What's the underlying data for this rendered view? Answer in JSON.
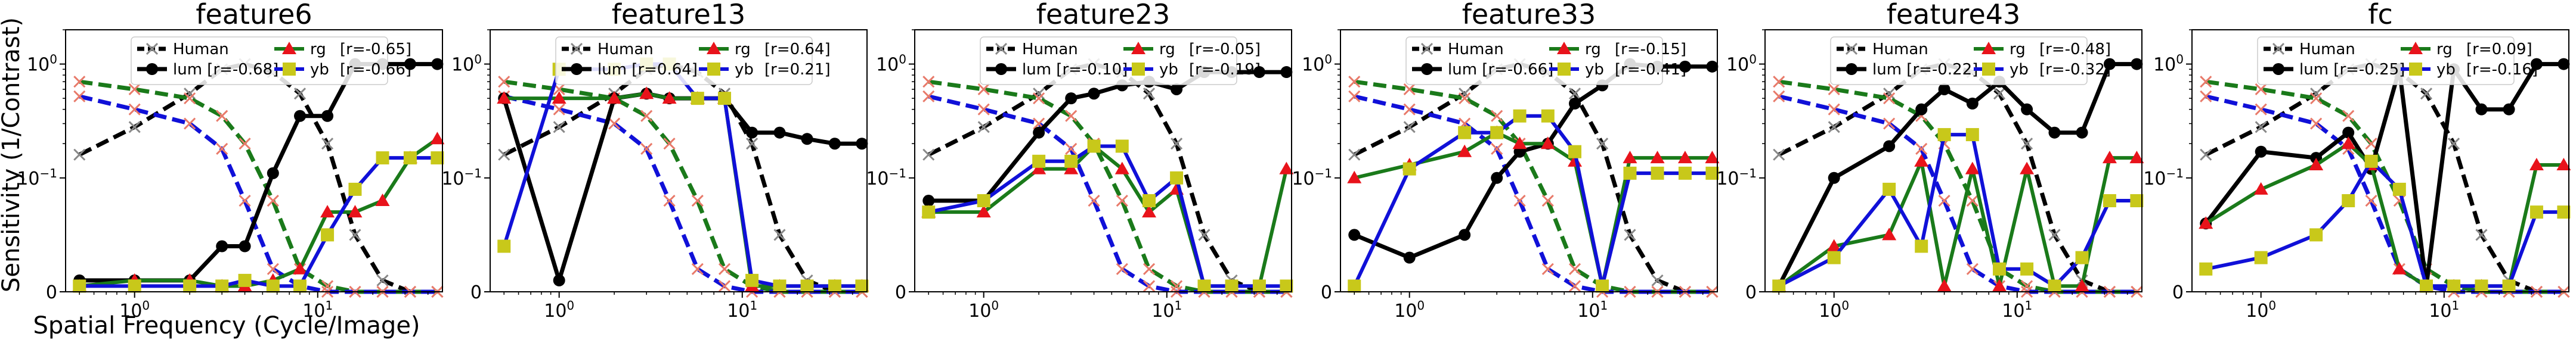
{
  "figure": {
    "ylabel": "Sensitivity (1/Contrast)",
    "xlabel": "Spatial Frequency (Cycle/Image)"
  },
  "colors": {
    "human": "#000000",
    "lum": "#000000",
    "rg": "#e8131b",
    "yb": "#c8c81a",
    "rg_line": "#1a7a1a",
    "yb_line": "#1010d8",
    "human_marker": "#888888",
    "rg_human": "#1a7a1a",
    "yb_human": "#1010d8",
    "cross": "#e87a6a"
  },
  "legend_labels": {
    "human": "Human",
    "lum": "lum",
    "rg": "rg",
    "yb": "yb"
  },
  "chart_data": [
    {
      "type": "line",
      "title": "feature6",
      "x": [
        0.5,
        1,
        2,
        3,
        4,
        5.7,
        8,
        11.3,
        16,
        22.6,
        32,
        45
      ],
      "yscale": "symlog",
      "ylim": [
        0,
        2
      ],
      "xticks": [
        "10^0",
        "10^1"
      ],
      "yticks": [
        "0",
        "10^-1",
        "10^0"
      ],
      "series": [
        {
          "name": "Human",
          "values": [
            0.16,
            0.28,
            0.55,
            0.9,
            1.0,
            0.85,
            0.55,
            0.2,
            0.05,
            0.01,
            0.0,
            0.0
          ]
        },
        {
          "name": "Human-rg",
          "values": [
            0.7,
            0.6,
            0.5,
            0.35,
            0.2,
            0.08,
            0.02,
            0.005,
            0.0,
            0.0,
            0.0,
            0.0
          ]
        },
        {
          "name": "Human-yb",
          "values": [
            0.52,
            0.4,
            0.3,
            0.18,
            0.08,
            0.02,
            0.005,
            0.0,
            0.0,
            0.0,
            0.0,
            0.0
          ]
        },
        {
          "name": "lum",
          "r_label": "[r=-0.68]",
          "values": [
            0.01,
            0.01,
            0.01,
            0.04,
            0.04,
            0.11,
            0.35,
            0.35,
            1.0,
            1.0,
            1.0,
            1.0
          ]
        },
        {
          "name": "rg",
          "r_label": "[r=-0.65]",
          "values": [
            0.005,
            0.01,
            0.01,
            0.005,
            0.005,
            0.01,
            0.02,
            0.07,
            0.07,
            0.08,
            0.15,
            0.22
          ]
        },
        {
          "name": "yb",
          "r_label": "[r=-0.66]",
          "values": [
            0.005,
            0.005,
            0.005,
            0.005,
            0.01,
            0.005,
            0.005,
            0.05,
            0.09,
            0.15,
            0.15,
            0.15
          ]
        }
      ]
    },
    {
      "type": "line",
      "title": "feature13",
      "x": [
        0.5,
        1,
        2,
        3,
        4,
        5.7,
        8,
        11.3,
        16,
        22.6,
        32,
        45
      ],
      "yscale": "symlog",
      "ylim": [
        0,
        2
      ],
      "xticks": [
        "10^0",
        "10^1"
      ],
      "yticks": [
        "0",
        "10^-1",
        "10^0"
      ],
      "series": [
        {
          "name": "Human",
          "values": [
            0.16,
            0.28,
            0.55,
            0.9,
            1.0,
            0.85,
            0.55,
            0.2,
            0.05,
            0.01,
            0.0,
            0.0
          ]
        },
        {
          "name": "Human-rg",
          "values": [
            0.7,
            0.6,
            0.5,
            0.35,
            0.2,
            0.08,
            0.02,
            0.005,
            0.0,
            0.0,
            0.0,
            0.0
          ]
        },
        {
          "name": "Human-yb",
          "values": [
            0.52,
            0.4,
            0.3,
            0.18,
            0.08,
            0.02,
            0.005,
            0.0,
            0.0,
            0.0,
            0.0,
            0.0
          ]
        },
        {
          "name": "lum",
          "r_label": "[r=0.64]",
          "values": [
            0.5,
            0.01,
            0.5,
            0.55,
            0.5,
            0.5,
            0.5,
            0.25,
            0.25,
            0.22,
            0.2,
            0.2
          ]
        },
        {
          "name": "rg",
          "r_label": "[r=0.64]",
          "values": [
            0.5,
            0.5,
            0.5,
            0.55,
            0.5,
            0.5,
            0.5,
            0.005,
            0.005,
            0.005,
            0.005,
            0.005
          ]
        },
        {
          "name": "yb",
          "r_label": "[r=0.21]",
          "values": [
            0.04,
            0.9,
            0.9,
            1.0,
            1.0,
            0.5,
            0.5,
            0.01,
            0.005,
            0.005,
            0.005,
            0.005
          ]
        }
      ]
    },
    {
      "type": "line",
      "title": "feature23",
      "x": [
        0.5,
        1,
        2,
        3,
        4,
        5.7,
        8,
        11.3,
        16,
        22.6,
        32,
        45
      ],
      "yscale": "symlog",
      "ylim": [
        0,
        2
      ],
      "xticks": [
        "10^0",
        "10^1"
      ],
      "yticks": [
        "0",
        "10^-1",
        "10^0"
      ],
      "series": [
        {
          "name": "Human",
          "values": [
            0.16,
            0.28,
            0.55,
            0.9,
            1.0,
            0.85,
            0.55,
            0.2,
            0.05,
            0.01,
            0.0,
            0.0
          ]
        },
        {
          "name": "Human-rg",
          "values": [
            0.7,
            0.6,
            0.5,
            0.35,
            0.2,
            0.08,
            0.02,
            0.005,
            0.0,
            0.0,
            0.0,
            0.0
          ]
        },
        {
          "name": "Human-yb",
          "values": [
            0.52,
            0.4,
            0.3,
            0.18,
            0.08,
            0.02,
            0.005,
            0.0,
            0.0,
            0.0,
            0.0,
            0.0
          ]
        },
        {
          "name": "lum",
          "r_label": "[r=-0.10]",
          "values": [
            0.08,
            0.08,
            0.25,
            0.5,
            0.55,
            0.65,
            0.7,
            0.6,
            0.85,
            0.85,
            0.85,
            0.85
          ]
        },
        {
          "name": "rg",
          "r_label": "[r=-0.05]",
          "values": [
            0.07,
            0.07,
            0.12,
            0.12,
            0.19,
            0.12,
            0.07,
            0.09,
            0.005,
            0.005,
            0.005,
            0.12
          ]
        },
        {
          "name": "yb",
          "r_label": "[r=-0.19]",
          "values": [
            0.07,
            0.08,
            0.14,
            0.14,
            0.19,
            0.19,
            0.08,
            0.1,
            0.005,
            0.005,
            0.005,
            0.005
          ]
        }
      ]
    },
    {
      "type": "line",
      "title": "feature33",
      "x": [
        0.5,
        1,
        2,
        3,
        4,
        5.7,
        8,
        11.3,
        16,
        22.6,
        32,
        45
      ],
      "yscale": "symlog",
      "ylim": [
        0,
        2
      ],
      "xticks": [
        "10^0",
        "10^1"
      ],
      "yticks": [
        "0",
        "10^-1",
        "10^0"
      ],
      "series": [
        {
          "name": "Human",
          "values": [
            0.16,
            0.28,
            0.55,
            0.9,
            1.0,
            0.85,
            0.55,
            0.2,
            0.05,
            0.01,
            0.0,
            0.0
          ]
        },
        {
          "name": "Human-rg",
          "values": [
            0.7,
            0.6,
            0.5,
            0.35,
            0.2,
            0.08,
            0.02,
            0.005,
            0.0,
            0.0,
            0.0,
            0.0
          ]
        },
        {
          "name": "Human-yb",
          "values": [
            0.52,
            0.4,
            0.3,
            0.18,
            0.08,
            0.02,
            0.005,
            0.0,
            0.0,
            0.0,
            0.0,
            0.0
          ]
        },
        {
          "name": "lum",
          "r_label": "[r=-0.66]",
          "values": [
            0.05,
            0.03,
            0.05,
            0.1,
            0.17,
            0.2,
            0.45,
            0.65,
            1.0,
            0.95,
            0.95,
            0.95
          ]
        },
        {
          "name": "rg",
          "r_label": "[r=-0.15]",
          "values": [
            0.1,
            0.13,
            0.17,
            0.25,
            0.2,
            0.2,
            0.14,
            0.005,
            0.15,
            0.15,
            0.15,
            0.15
          ]
        },
        {
          "name": "yb",
          "r_label": "[r=-0.41]",
          "values": [
            0.005,
            0.12,
            0.25,
            0.25,
            0.35,
            0.35,
            0.17,
            0.005,
            0.11,
            0.11,
            0.11,
            0.11
          ]
        }
      ]
    },
    {
      "type": "line",
      "title": "feature43",
      "x": [
        0.5,
        1,
        2,
        3,
        4,
        5.7,
        8,
        11.3,
        16,
        22.6,
        32,
        45
      ],
      "yscale": "symlog",
      "ylim": [
        0,
        2
      ],
      "xticks": [
        "10^0",
        "10^1"
      ],
      "yticks": [
        "0",
        "10^-1",
        "10^0"
      ],
      "series": [
        {
          "name": "Human",
          "values": [
            0.16,
            0.28,
            0.55,
            0.9,
            1.0,
            0.85,
            0.55,
            0.2,
            0.05,
            0.01,
            0.0,
            0.0
          ]
        },
        {
          "name": "Human-rg",
          "values": [
            0.7,
            0.6,
            0.5,
            0.35,
            0.2,
            0.08,
            0.02,
            0.005,
            0.0,
            0.0,
            0.0,
            0.0
          ]
        },
        {
          "name": "Human-yb",
          "values": [
            0.52,
            0.4,
            0.3,
            0.18,
            0.08,
            0.02,
            0.005,
            0.0,
            0.0,
            0.0,
            0.0,
            0.0
          ]
        },
        {
          "name": "lum",
          "r_label": "[r=-0.22]",
          "values": [
            0.005,
            0.1,
            0.19,
            0.4,
            0.6,
            0.45,
            0.7,
            0.4,
            0.25,
            0.25,
            1.0,
            1.0
          ]
        },
        {
          "name": "rg",
          "r_label": "[r=-0.48]",
          "values": [
            0.005,
            0.04,
            0.05,
            0.14,
            0.005,
            0.12,
            0.005,
            0.12,
            0.005,
            0.005,
            0.15,
            0.15
          ]
        },
        {
          "name": "yb",
          "r_label": "[r=-0.32]",
          "values": [
            0.005,
            0.03,
            0.09,
            0.04,
            0.24,
            0.24,
            0.02,
            0.02,
            0.005,
            0.03,
            0.08,
            0.08
          ]
        }
      ]
    },
    {
      "type": "line",
      "title": "fc",
      "x": [
        0.5,
        1,
        2,
        3,
        4,
        5.7,
        8,
        11.3,
        16,
        22.6,
        32,
        45
      ],
      "yscale": "symlog",
      "ylim": [
        0,
        2
      ],
      "xticks": [
        "10^0",
        "10^1"
      ],
      "yticks": [
        "0",
        "10^-1",
        "10^0"
      ],
      "series": [
        {
          "name": "Human",
          "values": [
            0.16,
            0.28,
            0.55,
            0.9,
            1.0,
            0.85,
            0.55,
            0.2,
            0.05,
            0.01,
            0.0,
            0.0
          ]
        },
        {
          "name": "Human-rg",
          "values": [
            0.7,
            0.6,
            0.5,
            0.35,
            0.2,
            0.08,
            0.02,
            0.005,
            0.0,
            0.0,
            0.0,
            0.0
          ]
        },
        {
          "name": "Human-yb",
          "values": [
            0.52,
            0.4,
            0.3,
            0.18,
            0.08,
            0.02,
            0.005,
            0.0,
            0.0,
            0.0,
            0.0,
            0.0
          ]
        },
        {
          "name": "lum",
          "r_label": "[r=-0.25]",
          "values": [
            0.06,
            0.17,
            0.15,
            0.25,
            0.12,
            0.9,
            0.005,
            0.9,
            0.4,
            0.4,
            1.0,
            1.0
          ]
        },
        {
          "name": "rg",
          "r_label": "[r=0.09]",
          "values": [
            0.06,
            0.09,
            0.13,
            0.2,
            0.13,
            0.02,
            0.005,
            0.005,
            0.005,
            0.005,
            0.13,
            0.13
          ]
        },
        {
          "name": "yb",
          "r_label": "[r=-0.16]",
          "values": [
            0.02,
            0.03,
            0.05,
            0.08,
            0.14,
            0.09,
            0.005,
            0.005,
            0.005,
            0.005,
            0.07,
            0.07
          ]
        }
      ]
    }
  ]
}
